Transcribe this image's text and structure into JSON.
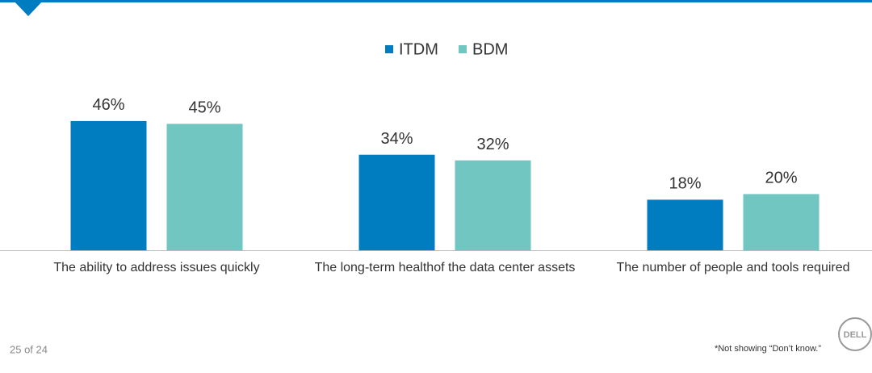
{
  "chart_data": {
    "type": "bar",
    "categories": [
      "The ability to address issues quickly",
      "The long-term healthof the data center assets",
      "The number of people and tools required"
    ],
    "series": [
      {
        "name": "ITDM",
        "color": "#007dc1",
        "values": [
          46,
          34,
          18
        ],
        "value_labels": [
          "46%",
          "34%",
          "18%"
        ]
      },
      {
        "name": "BDM",
        "color": "#72c6c1",
        "values": [
          45,
          32,
          20
        ],
        "value_labels": [
          "45%",
          "32%",
          "20%"
        ]
      }
    ],
    "ylim": [
      0,
      50
    ],
    "grid": false,
    "legend": "top"
  },
  "footer": {
    "page": "25 of 24",
    "note": "*Not showing “Don’t know.”",
    "logo": "DELL"
  }
}
